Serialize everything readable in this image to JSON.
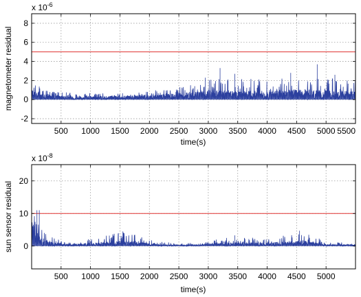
{
  "chart_data": [
    {
      "type": "line",
      "ylabel": "magnetometer residual",
      "xlabel": "time(s)",
      "y_exponent_base": "x 10",
      "y_exponent_power": "-6",
      "xlim": [
        0,
        5500
      ],
      "ylim": [
        -2.5,
        9
      ],
      "xticks": [
        500,
        1000,
        1500,
        2000,
        2500,
        3000,
        3500,
        4000,
        4500,
        5000,
        5500
      ],
      "xtick_labels": [
        "500",
        "1000",
        "1500",
        "2000",
        "2500",
        "3000",
        "3500",
        "4000",
        "4500",
        "5000",
        "5500"
      ],
      "yticks": [
        -2,
        0,
        2,
        4,
        6,
        8
      ],
      "ytick_labels": [
        "-2",
        "0",
        "2",
        "4",
        "6",
        "8"
      ],
      "grid": true,
      "threshold": {
        "y": 5,
        "color": "#e0302f"
      },
      "series_color": "#2b3f9e",
      "noise_envelope": {
        "x": [
          0,
          100,
          200,
          400,
          800,
          1200,
          1600,
          2000,
          2400,
          2800,
          3200,
          3600,
          4000,
          4400,
          4800,
          5200,
          5500
        ],
        "typical": [
          1.1,
          0.9,
          0.6,
          0.4,
          0.35,
          0.35,
          0.4,
          0.45,
          0.6,
          0.8,
          0.95,
          0.9,
          0.95,
          1.0,
          0.95,
          0.9,
          0.9
        ],
        "peak": [
          2.0,
          1.6,
          1.0,
          0.8,
          0.7,
          0.7,
          0.8,
          0.9,
          1.3,
          2.0,
          2.3,
          2.2,
          2.1,
          2.3,
          2.2,
          2.2,
          2.0
        ]
      },
      "spikes": [
        [
          3200,
          3.3
        ],
        [
          4850,
          3.7
        ],
        [
          3450,
          2.7
        ],
        [
          4400,
          2.8
        ],
        [
          5150,
          2.6
        ],
        [
          2950,
          2.3
        ]
      ]
    },
    {
      "type": "line",
      "ylabel": "sun sensor residual",
      "xlabel": "time(s)",
      "y_exponent_base": "x 10",
      "y_exponent_power": "-8",
      "xlim": [
        0,
        5500
      ],
      "ylim": [
        -7,
        25
      ],
      "xticks": [
        500,
        1000,
        1500,
        2000,
        2500,
        3000,
        3500,
        4000,
        4500,
        5000
      ],
      "xtick_labels": [
        "500",
        "1000",
        "1500",
        "2000",
        "2500",
        "3000",
        "3500",
        "4000",
        "4500",
        "5000"
      ],
      "yticks": [
        0,
        10,
        20
      ],
      "ytick_labels": [
        "0",
        "10",
        "20"
      ],
      "grid": true,
      "threshold": {
        "y": 10,
        "color": "#e0302f"
      },
      "series_color": "#2b3f9e",
      "noise_envelope": {
        "x": [
          0,
          50,
          100,
          150,
          200,
          300,
          500,
          800,
          1200,
          1500,
          1800,
          2100,
          2500,
          2800,
          3200,
          3500,
          3800,
          4200,
          4600,
          5000,
          5500
        ],
        "typical": [
          8.0,
          6.0,
          4.0,
          3.0,
          2.2,
          1.3,
          0.8,
          0.7,
          1.1,
          1.7,
          1.3,
          0.6,
          0.4,
          0.5,
          0.9,
          1.3,
          1.0,
          1.2,
          1.7,
          0.6,
          0.4
        ],
        "peak": [
          11.0,
          10.5,
          9.0,
          6.0,
          4.5,
          3.0,
          1.8,
          1.6,
          2.8,
          4.5,
          3.5,
          1.5,
          0.9,
          1.0,
          2.2,
          3.3,
          2.5,
          3.0,
          4.6,
          1.5,
          0.8
        ]
      },
      "spikes": [
        [
          90,
          11
        ],
        [
          130,
          11
        ],
        [
          1550,
          4.5
        ],
        [
          4550,
          4.7
        ],
        [
          3450,
          3.3
        ],
        [
          1320,
          3.2
        ]
      ]
    }
  ]
}
